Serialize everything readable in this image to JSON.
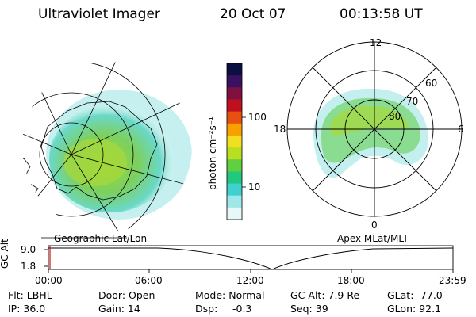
{
  "header": {
    "title": "Ultraviolet Imager",
    "date": "20 Oct 07",
    "time": "00:13:58 UT"
  },
  "colorbar": {
    "label": "photon cm⁻²s⁻¹",
    "ticks": [
      "100",
      "10"
    ],
    "colors": [
      "#0a1040",
      "#3a1060",
      "#801040",
      "#c01020",
      "#e85010",
      "#f8a000",
      "#f0e020",
      "#b8e020",
      "#60d040",
      "#20c880",
      "#40d0d0",
      "#a0e8e8",
      "#e8f8f8"
    ]
  },
  "left_map": {
    "label": "Geographic Lat/Lon"
  },
  "right_map": {
    "label": "Apex MLat/MLT",
    "mlt_labels": {
      "top": "12",
      "left": "18",
      "right": "6",
      "bottom": "0"
    },
    "lat_labels": [
      "60",
      "70",
      "80"
    ]
  },
  "timeline": {
    "ylabel": "GC Alt",
    "y_ticks": [
      "9.0",
      "1.8"
    ],
    "x_ticks": [
      "00:00",
      "06:00",
      "12:00",
      "18:00",
      "23:59"
    ]
  },
  "info": {
    "flt": "Flt: LBHL",
    "ip": "IP: 36.0",
    "door": "Door: Open",
    "gain": "Gain: 14",
    "mode": "Mode: Normal",
    "dsp_label": "Dsp:",
    "dsp_value": "-0.3",
    "gcalt": "GC Alt: 7.9 Re",
    "seq": "Seq: 39",
    "glat": "GLat: -77.0",
    "glon": "GLon: 92.1"
  }
}
